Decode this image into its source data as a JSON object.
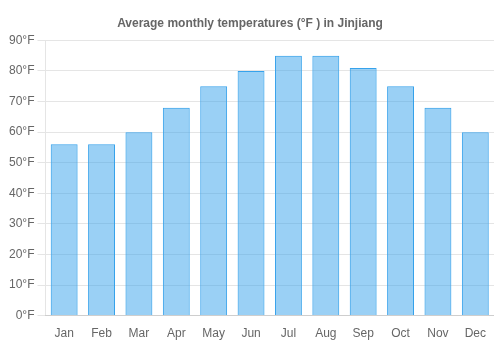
{
  "chart_data": {
    "type": "bar",
    "title": "Average monthly temperatures (°F ) in Jinjiang",
    "categories": [
      "Jan",
      "Feb",
      "Mar",
      "Apr",
      "May",
      "Jun",
      "Jul",
      "Aug",
      "Sep",
      "Oct",
      "Nov",
      "Dec"
    ],
    "values": [
      56,
      56,
      60,
      68,
      75,
      80,
      85,
      85,
      81,
      75,
      68,
      60
    ],
    "ylim": [
      0,
      90
    ],
    "yticks": [
      {
        "value": 0,
        "label": "0°F"
      },
      {
        "value": 10,
        "label": "10°F"
      },
      {
        "value": 20,
        "label": "20°F"
      },
      {
        "value": 30,
        "label": "30°F"
      },
      {
        "value": 40,
        "label": "40°F"
      },
      {
        "value": 50,
        "label": "50°F"
      },
      {
        "value": 60,
        "label": "60°F"
      },
      {
        "value": 70,
        "label": "70°F"
      },
      {
        "value": 80,
        "label": "80°F"
      },
      {
        "value": 90,
        "label": "90°F"
      }
    ],
    "grid": true
  }
}
